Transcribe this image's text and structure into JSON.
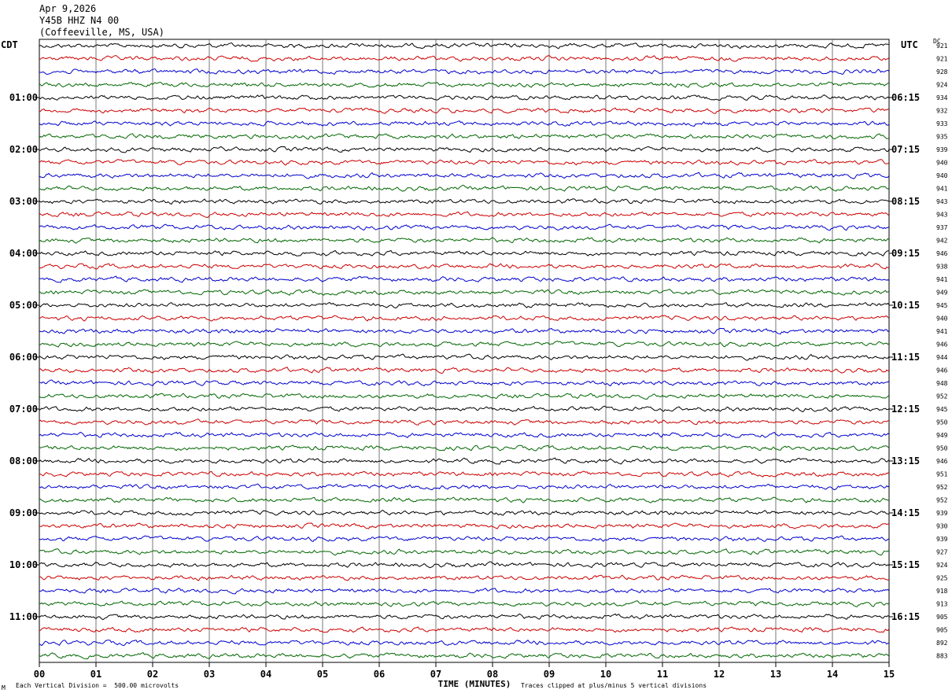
{
  "header": {
    "date": "Apr 9,2026",
    "channel": "Y45B HHZ N4 00",
    "location": "(Coffeeville, MS, USA)"
  },
  "left_timezone": "CDT",
  "right_timezone": "UTC",
  "dc_label": "DC",
  "footer": {
    "scale_note": "Each Vertical Division =  500.00 microvolts",
    "clip_note": "Traces clipped at plus/minus 5 vertical divisions",
    "corner_mark": "M"
  },
  "colors": {
    "cycle": [
      "#000000",
      "#cc0000",
      "#0000cc",
      "#006600"
    ],
    "grid": "#000000"
  },
  "chart_data": {
    "type": "line",
    "title": "",
    "xlabel": "TIME (MINUTES)",
    "ylabel": "",
    "xlim": [
      0,
      15
    ],
    "x_ticks": [
      "00",
      "01",
      "02",
      "03",
      "04",
      "05",
      "06",
      "07",
      "08",
      "09",
      "10",
      "11",
      "12",
      "13",
      "14",
      "15"
    ],
    "grid": true,
    "traces_per_hour": 4,
    "left_hour_labels": [
      "01:00",
      "02:00",
      "03:00",
      "04:00",
      "05:00",
      "06:00",
      "07:00",
      "08:00",
      "09:00",
      "10:00",
      "11:00"
    ],
    "right_hour_labels": [
      "06:15",
      "07:15",
      "08:15",
      "09:15",
      "10:15",
      "11:15",
      "12:15",
      "13:15",
      "14:15",
      "15:15",
      "16:15"
    ],
    "dc_offsets": [
      921,
      921,
      928,
      924,
      934,
      932,
      933,
      935,
      939,
      940,
      940,
      941,
      943,
      943,
      937,
      942,
      946,
      938,
      941,
      949,
      945,
      940,
      941,
      946,
      944,
      946,
      948,
      952,
      945,
      950,
      949,
      950,
      946,
      951,
      952,
      952,
      939,
      930,
      939,
      927,
      924,
      925,
      918,
      913,
      905,
      905,
      892,
      883
    ]
  }
}
